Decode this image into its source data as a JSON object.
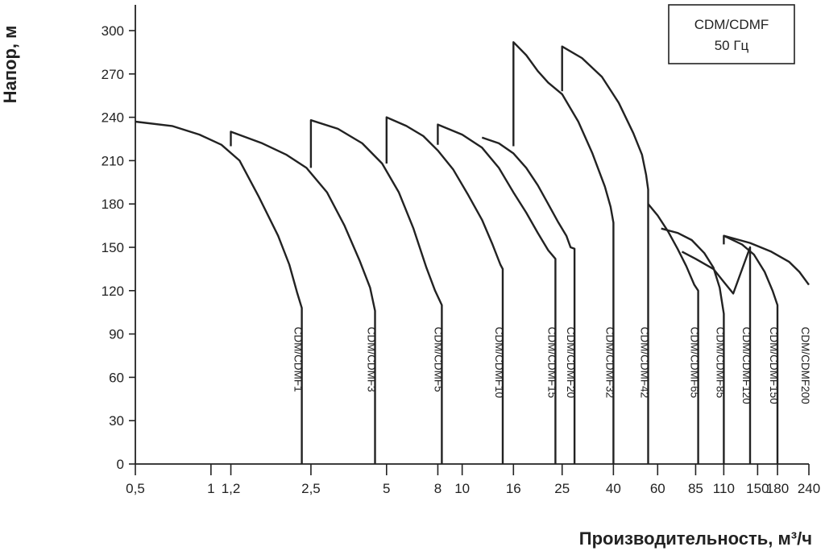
{
  "chart_data": {
    "type": "line",
    "title": "",
    "xlabel": "Производительность, м³/ч",
    "ylabel": "Напор, м",
    "x_scale": "log",
    "xlim": [
      0.5,
      240
    ],
    "ylim": [
      0,
      310
    ],
    "legend_box": [
      "CDM/CDMF",
      "50 Гц"
    ],
    "x_ticks": [
      0.5,
      1,
      1.2,
      2.5,
      5,
      8,
      10,
      16,
      25,
      40,
      60,
      85,
      110,
      150,
      180,
      240
    ],
    "x_tick_labels": [
      "0,5",
      "1",
      "1,2",
      "2,5",
      "5",
      "8",
      "10",
      "16",
      "25",
      "40",
      "60",
      "85",
      "110",
      "150",
      "180",
      "240"
    ],
    "y_ticks": [
      0,
      30,
      60,
      90,
      120,
      150,
      180,
      210,
      240,
      270,
      300
    ],
    "series": [
      {
        "name": "CDM/CDMF1",
        "points": [
          [
            0.5,
            237
          ],
          [
            0.7,
            234
          ],
          [
            0.9,
            228
          ],
          [
            1.1,
            221
          ],
          [
            1.3,
            210
          ],
          [
            1.55,
            185
          ],
          [
            1.85,
            158
          ],
          [
            2.05,
            138
          ],
          [
            2.2,
            119
          ],
          [
            2.3,
            108
          ],
          [
            2.3,
            0
          ]
        ]
      },
      {
        "name": "CDM/CDMF3",
        "points": [
          [
            1.2,
            220
          ],
          [
            1.2,
            230
          ],
          [
            1.6,
            222
          ],
          [
            2.0,
            214
          ],
          [
            2.4,
            205
          ],
          [
            2.9,
            188
          ],
          [
            3.4,
            165
          ],
          [
            3.9,
            141
          ],
          [
            4.3,
            122
          ],
          [
            4.5,
            106
          ],
          [
            4.5,
            0
          ]
        ]
      },
      {
        "name": "CDM/CDMF5",
        "points": [
          [
            2.5,
            205
          ],
          [
            2.5,
            238
          ],
          [
            3.2,
            232
          ],
          [
            4.0,
            222
          ],
          [
            4.8,
            208
          ],
          [
            5.6,
            188
          ],
          [
            6.4,
            163
          ],
          [
            7.2,
            136
          ],
          [
            7.8,
            120
          ],
          [
            8.3,
            110
          ],
          [
            8.3,
            0
          ]
        ]
      },
      {
        "name": "CDM/CDMF10",
        "points": [
          [
            5,
            208
          ],
          [
            5,
            240
          ],
          [
            6.0,
            234
          ],
          [
            7.0,
            227
          ],
          [
            8.0,
            217
          ],
          [
            9.2,
            204
          ],
          [
            10.5,
            187
          ],
          [
            12.0,
            169
          ],
          [
            13.2,
            152
          ],
          [
            14.2,
            138
          ],
          [
            14.5,
            135
          ],
          [
            14.5,
            0
          ]
        ]
      },
      {
        "name": "CDM/CDMF15",
        "points": [
          [
            8,
            221
          ],
          [
            8,
            235
          ],
          [
            10,
            228
          ],
          [
            12,
            219
          ],
          [
            14,
            205
          ],
          [
            16,
            188
          ],
          [
            18,
            174
          ],
          [
            20,
            160
          ],
          [
            22,
            148
          ],
          [
            23.5,
            142
          ],
          [
            23.5,
            0
          ]
        ]
      },
      {
        "name": "CDM/CDMF20",
        "points": [
          [
            12,
            226
          ],
          [
            14,
            222
          ],
          [
            16,
            215
          ],
          [
            18,
            205
          ],
          [
            20,
            193
          ],
          [
            22,
            180
          ],
          [
            24,
            168
          ],
          [
            26,
            158
          ],
          [
            27,
            150
          ],
          [
            28,
            149
          ],
          [
            28,
            0
          ]
        ]
      },
      {
        "name": "CDM/CDMF32",
        "points": [
          [
            16,
            220
          ],
          [
            16,
            292
          ],
          [
            18,
            283
          ],
          [
            20,
            272
          ],
          [
            22,
            264
          ],
          [
            25,
            256
          ],
          [
            29,
            237
          ],
          [
            33,
            215
          ],
          [
            37,
            192
          ],
          [
            39,
            178
          ],
          [
            40,
            167
          ],
          [
            40,
            0
          ]
        ]
      },
      {
        "name": "CDM/CDMF42",
        "points": [
          [
            25,
            258
          ],
          [
            25,
            289
          ],
          [
            30,
            281
          ],
          [
            36,
            268
          ],
          [
            42,
            250
          ],
          [
            48,
            229
          ],
          [
            52,
            214
          ],
          [
            54,
            200
          ],
          [
            55,
            190
          ],
          [
            55,
            0
          ]
        ]
      },
      {
        "name": "CDM/CDMF65",
        "points": [
          [
            55,
            180
          ],
          [
            60,
            172
          ],
          [
            66,
            161
          ],
          [
            72,
            149
          ],
          [
            78,
            137
          ],
          [
            84,
            124
          ],
          [
            87,
            120
          ],
          [
            87,
            0
          ]
        ]
      },
      {
        "name": "CDM/CDMF85",
        "points": [
          [
            62,
            163
          ],
          [
            72,
            160
          ],
          [
            82,
            155
          ],
          [
            92,
            146
          ],
          [
            100,
            136
          ],
          [
            106,
            122
          ],
          [
            110,
            104
          ],
          [
            110,
            0
          ]
        ]
      },
      {
        "name": "CDM/CDMF120",
        "points": [
          [
            75,
            147
          ],
          [
            85,
            142
          ],
          [
            100,
            135
          ],
          [
            110,
            126
          ],
          [
            120,
            118
          ],
          [
            140,
            150
          ],
          [
            140,
            0
          ]
        ]
      },
      {
        "name": "CDM/CDMF150",
        "points": [
          [
            110,
            152
          ],
          [
            110,
            158
          ],
          [
            130,
            152
          ],
          [
            145,
            145
          ],
          [
            160,
            133
          ],
          [
            172,
            120
          ],
          [
            180,
            110
          ],
          [
            180,
            0
          ]
        ]
      },
      {
        "name": "CDM/CDMF200",
        "points": [
          [
            110,
            158
          ],
          [
            140,
            153
          ],
          [
            170,
            147
          ],
          [
            200,
            140
          ],
          [
            220,
            133
          ],
          [
            240,
            124
          ]
        ]
      }
    ],
    "curve_label_positions": [
      2.3,
      4.5,
      8.3,
      14.5,
      23.5,
      28,
      40,
      55,
      87,
      110,
      140,
      180,
      240
    ],
    "grid": false
  }
}
